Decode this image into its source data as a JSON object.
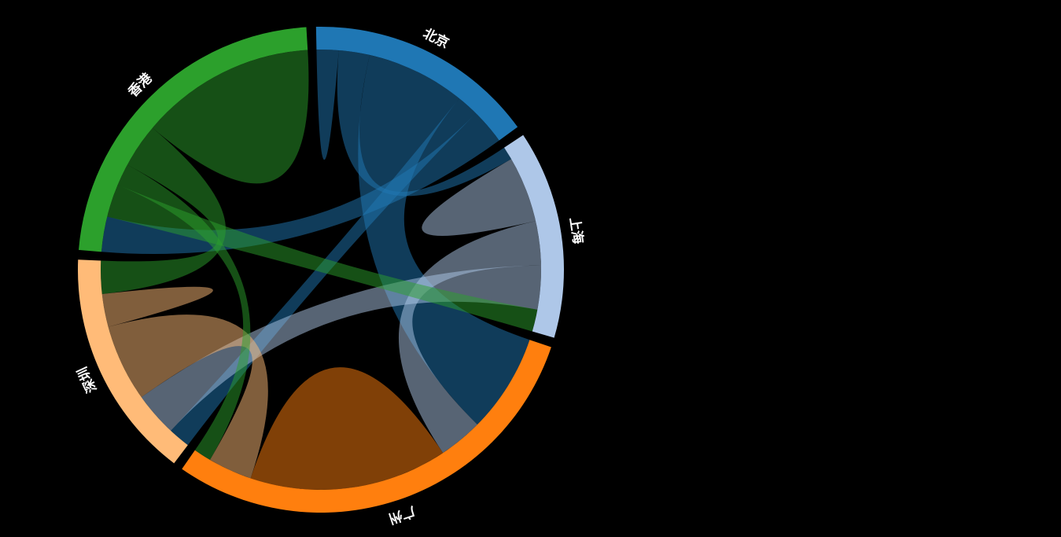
{
  "chart_data": {
    "type": "chord",
    "groups": [
      {
        "name": "北京",
        "color": "#1f77b4"
      },
      {
        "name": "上海",
        "color": "#aec7e8"
      },
      {
        "name": "广州",
        "color": "#ff7f0e"
      },
      {
        "name": "深圳",
        "color": "#ffbb78"
      },
      {
        "name": "香港",
        "color": "#2ca02c"
      }
    ],
    "matrix": [
      [
        10,
        14,
        45,
        10,
        16
      ],
      [
        6,
        30,
        20,
        20,
        10
      ],
      [
        45,
        20,
        90,
        20,
        8
      ],
      [
        10,
        20,
        35,
        15,
        15
      ],
      [
        16,
        15,
        10,
        20,
        80
      ]
    ],
    "ribbon_opacity": 0.5
  }
}
